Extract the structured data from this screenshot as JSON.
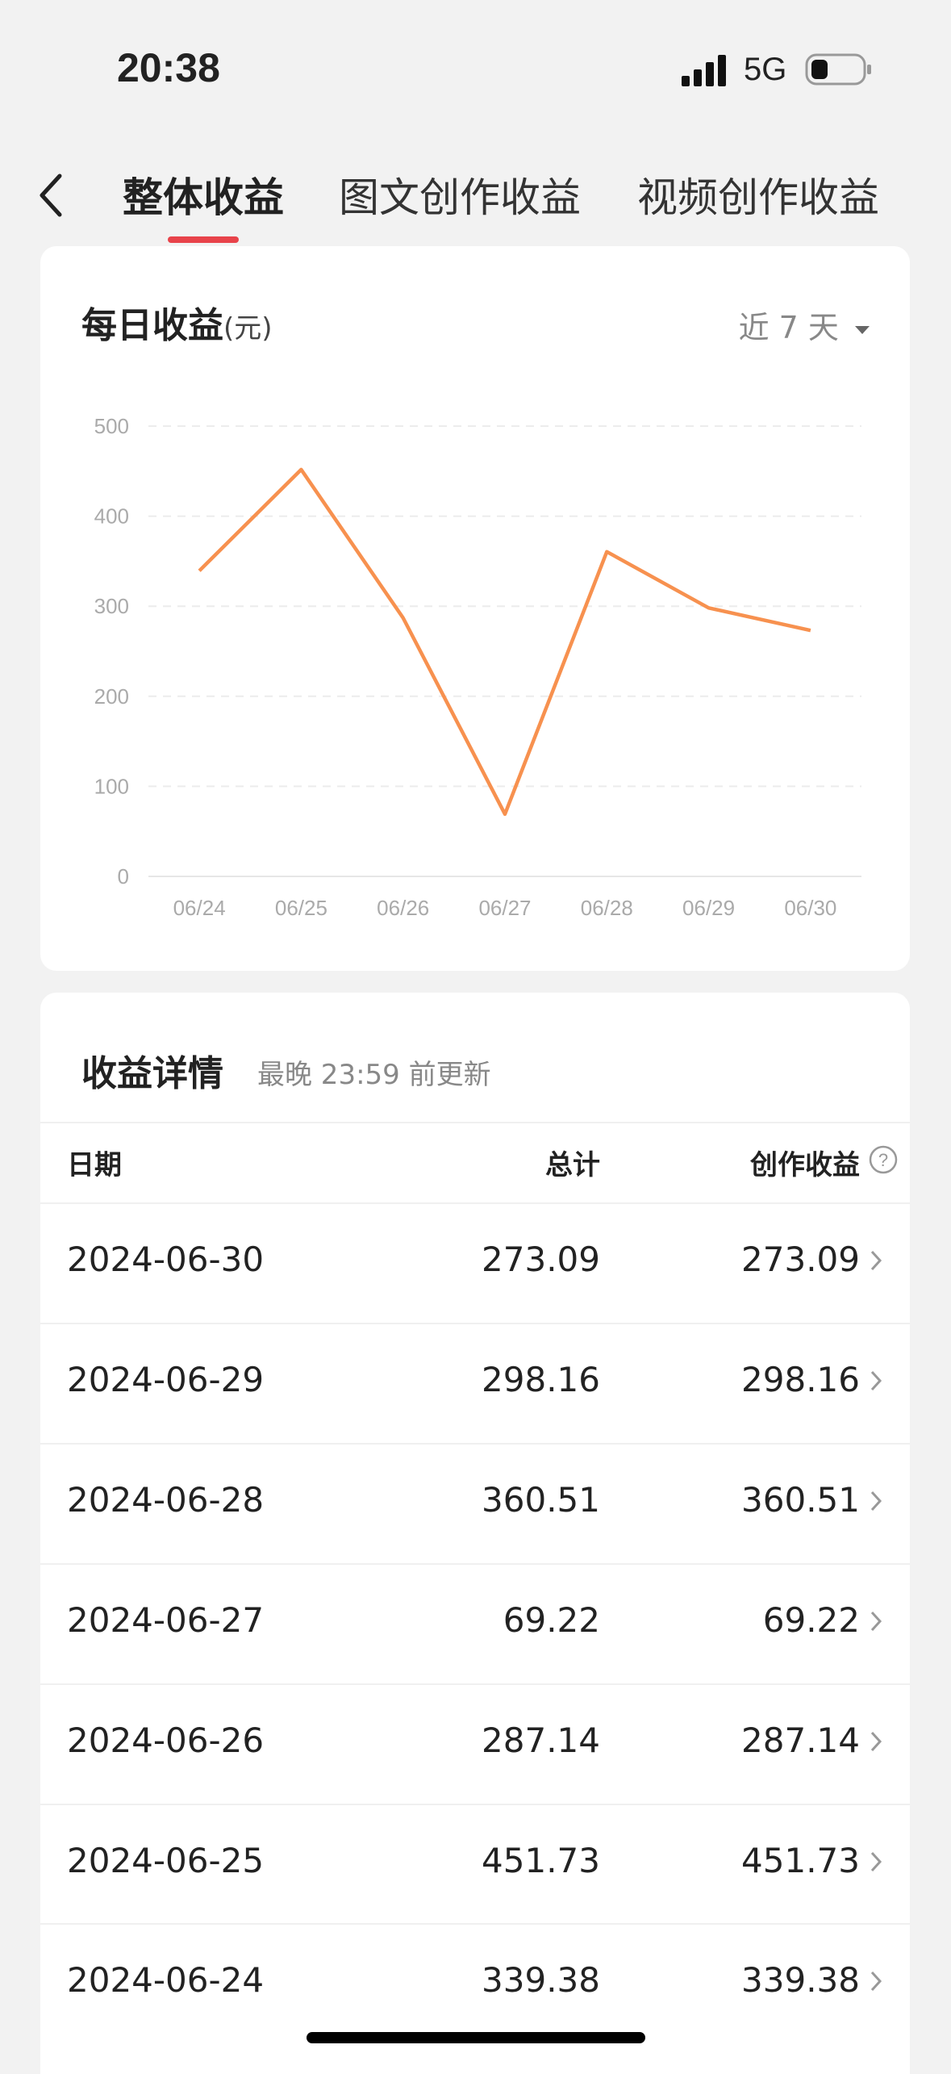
{
  "status": {
    "time": "20:38",
    "network": "5G"
  },
  "tabs": {
    "items": [
      "整体收益",
      "图文创作收益",
      "视频创作收益"
    ],
    "active": 0
  },
  "chart_data": {
    "type": "line",
    "title": "每日收益",
    "unit": "(元)",
    "range_selector": "近 7 天",
    "categories": [
      "06/24",
      "06/25",
      "06/26",
      "06/27",
      "06/28",
      "06/29",
      "06/30"
    ],
    "values": [
      339.38,
      451.73,
      287.14,
      69.22,
      360.51,
      298.16,
      273.09
    ],
    "color": "#f7914f",
    "ylim": [
      0,
      500
    ],
    "yticks": [
      0,
      100,
      200,
      300,
      400,
      500
    ],
    "grid": true
  },
  "details": {
    "title": "收益详情",
    "subtitle": "最晚 23:59 前更新",
    "columns": [
      "日期",
      "总计",
      "创作收益"
    ],
    "rows": [
      [
        "2024-06-30",
        "273.09",
        "273.09"
      ],
      [
        "2024-06-29",
        "298.16",
        "298.16"
      ],
      [
        "2024-06-28",
        "360.51",
        "360.51"
      ],
      [
        "2024-06-27",
        "69.22",
        "69.22"
      ],
      [
        "2024-06-26",
        "287.14",
        "287.14"
      ],
      [
        "2024-06-25",
        "451.73",
        "451.73"
      ],
      [
        "2024-06-24",
        "339.38",
        "339.38"
      ]
    ]
  }
}
